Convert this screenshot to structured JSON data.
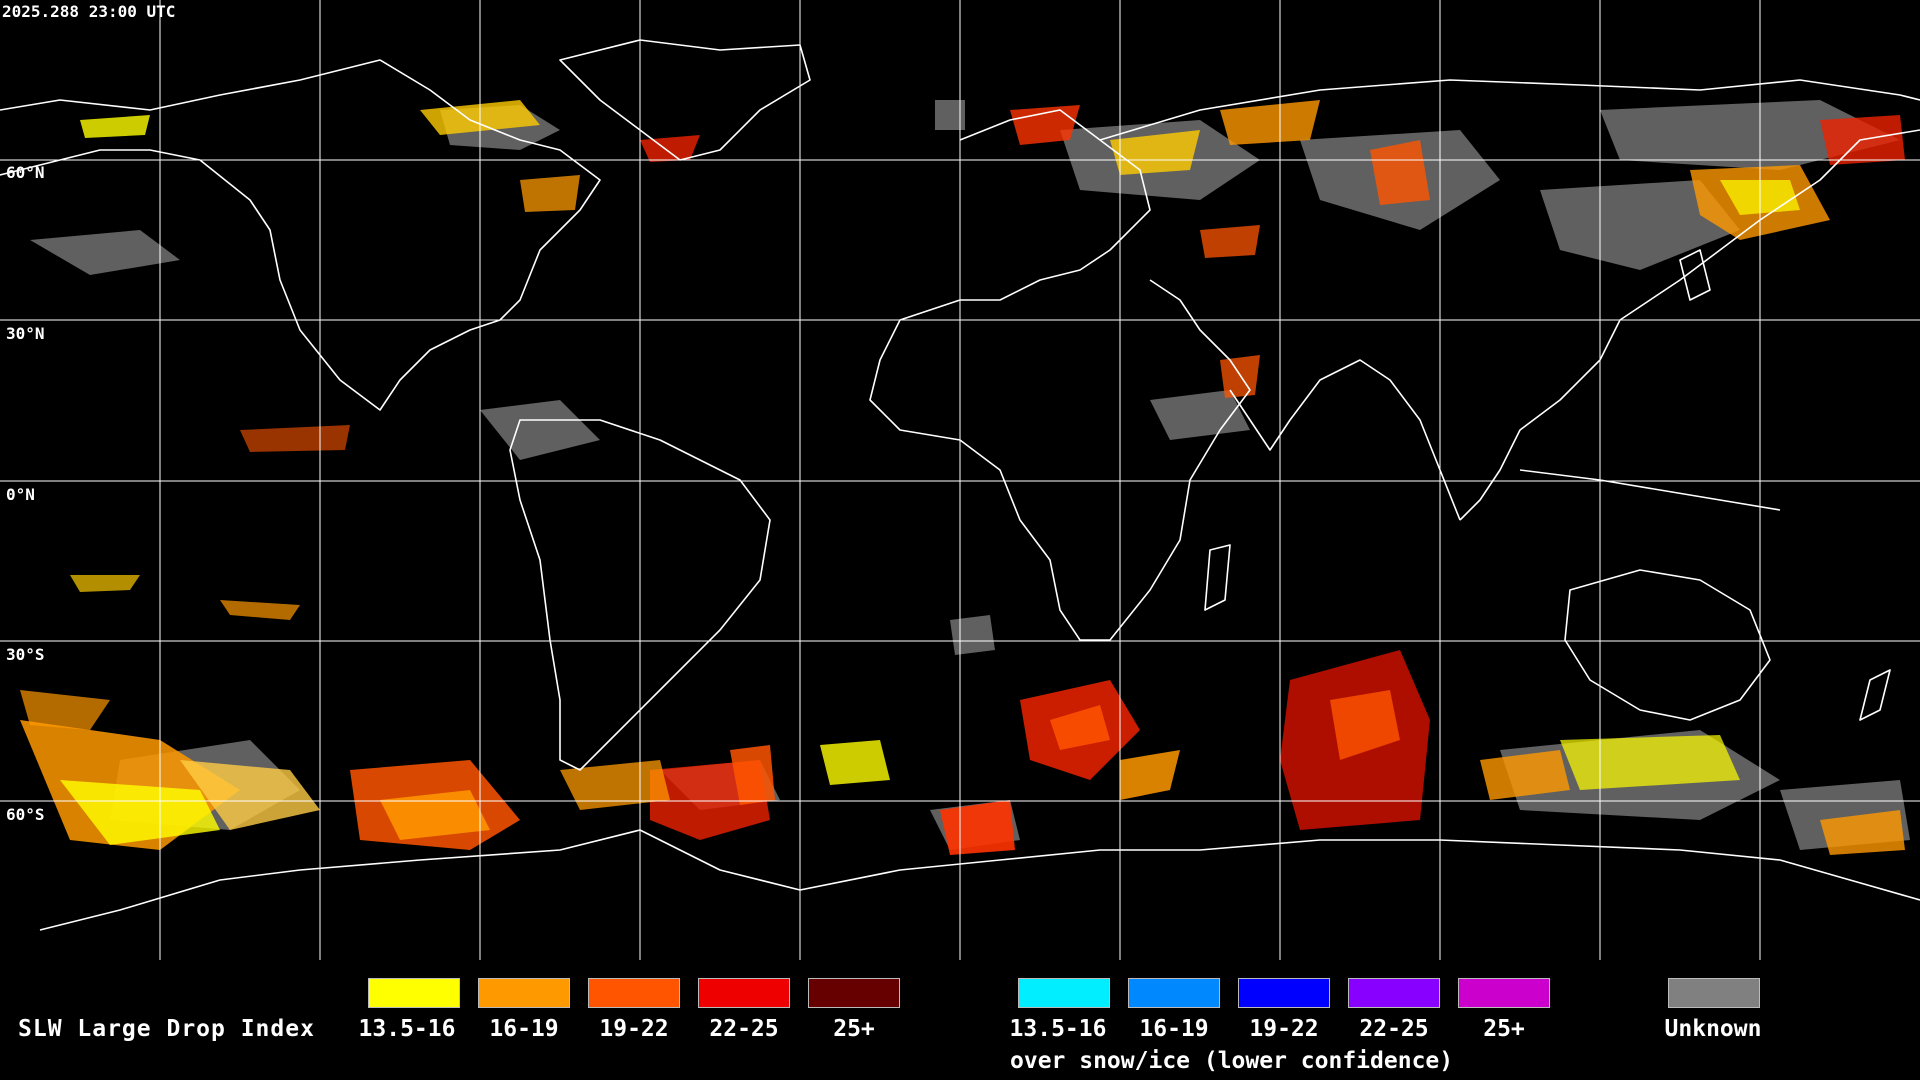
{
  "timestamp": "2025.288 23:00 UTC",
  "latitude_labels": [
    "60°N",
    "30°N",
    "0°N",
    "30°S",
    "60°S"
  ],
  "legend": {
    "title": "SLW Large Drop Index",
    "liquid_bins": [
      {
        "label": "13.5-16",
        "color": "#ffff00"
      },
      {
        "label": "16-19",
        "color": "#ff9900"
      },
      {
        "label": "19-22",
        "color": "#ff5500"
      },
      {
        "label": "22-25",
        "color": "#ee0000"
      },
      {
        "label": "25+",
        "color": "#660000"
      }
    ],
    "snow_bins": [
      {
        "label": "13.5-16",
        "color": "#00eeff"
      },
      {
        "label": "16-19",
        "color": "#0088ff"
      },
      {
        "label": "19-22",
        "color": "#0000ff"
      },
      {
        "label": "22-25",
        "color": "#8800ff"
      },
      {
        "label": "25+",
        "color": "#cc00cc"
      }
    ],
    "snow_note": "over snow/ice (lower confidence)",
    "unknown": {
      "label": "Unknown",
      "color": "#808080"
    }
  },
  "colors": {
    "background": "#000000",
    "gridlines": "#ffffff",
    "coastlines": "#ffffff"
  }
}
